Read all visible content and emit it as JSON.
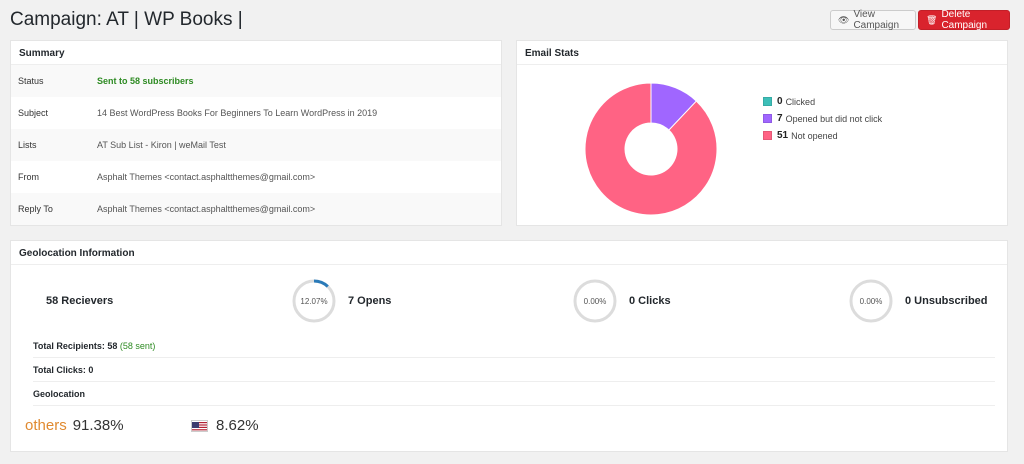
{
  "header": {
    "title": "Campaign: AT | WP Books |",
    "view_button": "View Campaign",
    "delete_button": "Delete Campaign"
  },
  "summary": {
    "heading": "Summary",
    "rows": [
      {
        "key": "Status",
        "value": "Sent to 58 subscribers"
      },
      {
        "key": "Subject",
        "value": "14 Best WordPress Books For Beginners To Learn WordPress in 2019"
      },
      {
        "key": "Lists",
        "value": "AT Sub List - Kiron | weMail Test"
      },
      {
        "key": "From",
        "value": "Asphalt Themes <contact.asphaltthemes@gmail.com>"
      },
      {
        "key": "Reply To",
        "value": "Asphalt Themes <contact.asphaltthemes@gmail.com>"
      }
    ]
  },
  "email_stats": {
    "heading": "Email Stats",
    "chart_data": {
      "type": "pie",
      "categories": [
        "Clicked",
        "Opened but did not click",
        "Not opened"
      ],
      "values": [
        0,
        7,
        51
      ],
      "colors": [
        "#3dbfb8",
        "#a066ff",
        "#ff6384"
      ]
    },
    "legend": [
      {
        "count": "0",
        "label": "Clicked",
        "color": "#3dbfb8"
      },
      {
        "count": "7",
        "label": "Opened but did not click",
        "color": "#a066ff"
      },
      {
        "count": "51",
        "label": "Not opened",
        "color": "#ff6384"
      }
    ]
  },
  "geo": {
    "heading": "Geolocation Information",
    "receivers": "58 Recievers",
    "opens": {
      "pct_label": "12.07%",
      "pct": 12.07,
      "label": "7 Opens"
    },
    "clicks": {
      "pct_label": "0.00%",
      "pct": 0,
      "label": "0 Clicks"
    },
    "unsub": {
      "pct_label": "0.00%",
      "pct": 0,
      "label": "0 Unsubscribed"
    },
    "total_recipients_label": "Total Recipients: 58",
    "sent_note": "(58 sent)",
    "total_clicks": "Total Clicks: 0",
    "geolocation_label": "Geolocation",
    "locations": [
      {
        "name": "others",
        "value": "91.38%"
      },
      {
        "flag": "us-flag",
        "value": "8.62%"
      }
    ]
  },
  "colors": {
    "ring_track": "#dcdcdc",
    "ring_fill": "#2a7ab8"
  }
}
